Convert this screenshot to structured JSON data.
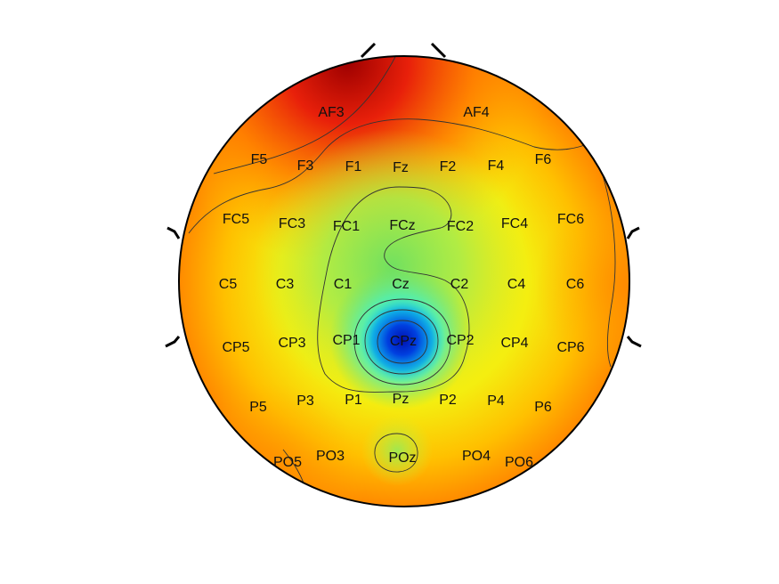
{
  "chart_data": {
    "type": "heatmap",
    "subtype": "eeg-topographic-map",
    "title": "",
    "xlabel": "",
    "ylabel": "",
    "colormap": "jet",
    "contour_lines": true,
    "head_outline": true,
    "ears": true,
    "nose": true,
    "grid": false,
    "legend": "none",
    "electrodes": [
      {
        "label": "AF3",
        "value": 0.62
      },
      {
        "label": "AF4",
        "value": 0.58
      },
      {
        "label": "F5",
        "value": 0.72
      },
      {
        "label": "F3",
        "value": 0.55
      },
      {
        "label": "F1",
        "value": 0.49
      },
      {
        "label": "Fz",
        "value": 0.46
      },
      {
        "label": "F2",
        "value": 0.48
      },
      {
        "label": "F4",
        "value": 0.5
      },
      {
        "label": "F6",
        "value": 0.54
      },
      {
        "label": "FC5",
        "value": 0.55
      },
      {
        "label": "FC3",
        "value": 0.44
      },
      {
        "label": "FC1",
        "value": 0.36
      },
      {
        "label": "FCz",
        "value": 0.3
      },
      {
        "label": "FC2",
        "value": 0.34
      },
      {
        "label": "FC4",
        "value": 0.42
      },
      {
        "label": "FC6",
        "value": 0.54
      },
      {
        "label": "C5",
        "value": 0.52
      },
      {
        "label": "C3",
        "value": 0.44
      },
      {
        "label": "C1",
        "value": 0.37
      },
      {
        "label": "Cz",
        "value": 0.34
      },
      {
        "label": "C2",
        "value": 0.33
      },
      {
        "label": "C4",
        "value": 0.4
      },
      {
        "label": "C6",
        "value": 0.52
      },
      {
        "label": "CP5",
        "value": 0.5
      },
      {
        "label": "CP3",
        "value": 0.43
      },
      {
        "label": "CP1",
        "value": 0.3
      },
      {
        "label": "CPz",
        "value": 0.02
      },
      {
        "label": "CP2",
        "value": 0.3
      },
      {
        "label": "CP4",
        "value": 0.44
      },
      {
        "label": "CP6",
        "value": 0.52
      },
      {
        "label": "P5",
        "value": 0.52
      },
      {
        "label": "P3",
        "value": 0.45
      },
      {
        "label": "P1",
        "value": 0.41
      },
      {
        "label": "Pz",
        "value": 0.38
      },
      {
        "label": "P2",
        "value": 0.42
      },
      {
        "label": "P4",
        "value": 0.48
      },
      {
        "label": "P6",
        "value": 0.54
      },
      {
        "label": "PO5",
        "value": 0.6
      },
      {
        "label": "PO3",
        "value": 0.5
      },
      {
        "label": "POz",
        "value": 0.35
      },
      {
        "label": "PO4",
        "value": 0.52
      },
      {
        "label": "PO6",
        "value": 0.58
      }
    ]
  }
}
